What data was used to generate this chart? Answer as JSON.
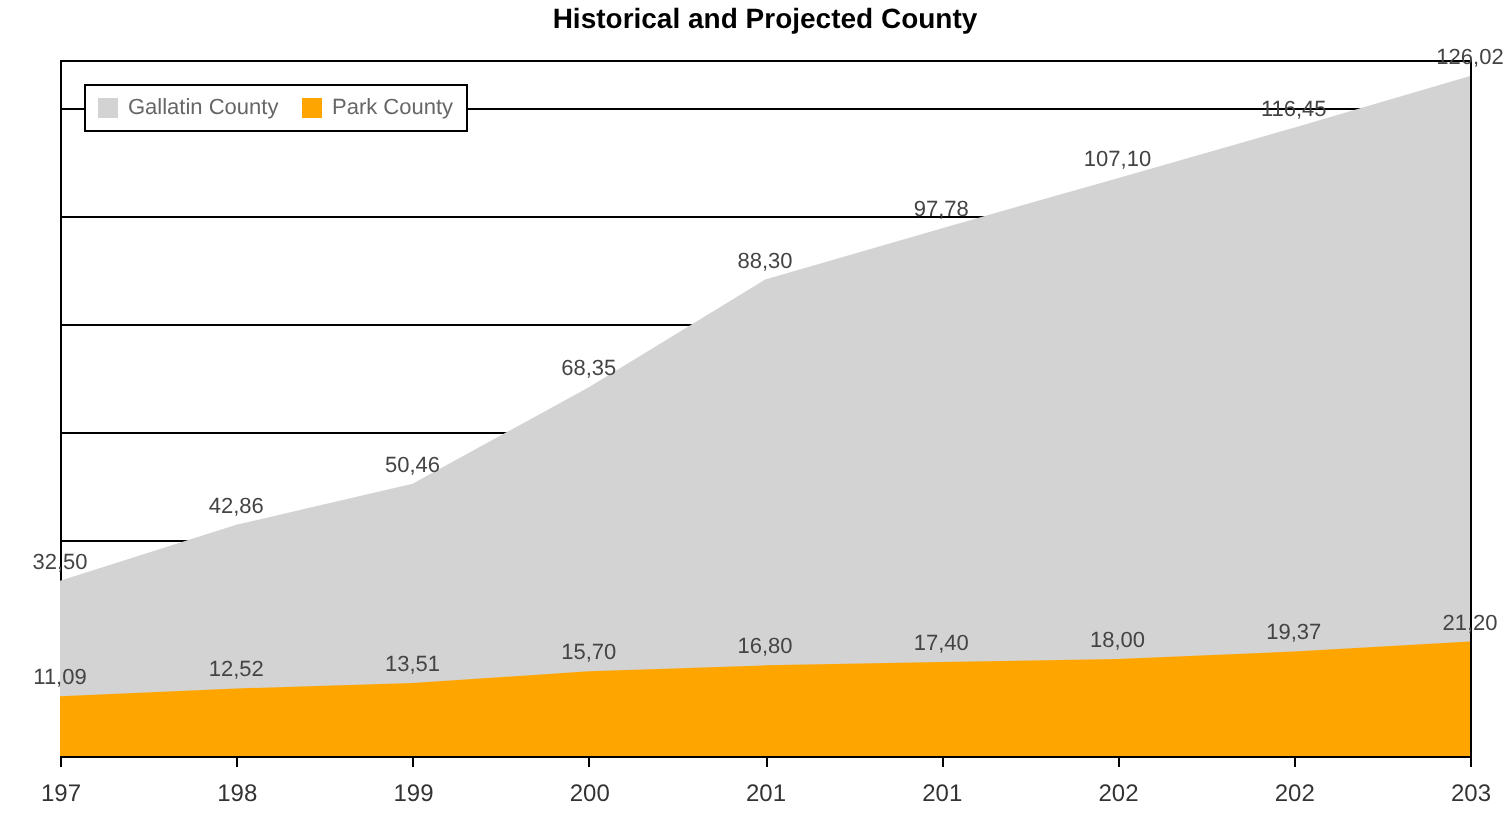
{
  "chart_data": {
    "type": "area",
    "title": "Historical and Projected County",
    "categories": [
      "197",
      "198",
      "199",
      "200",
      "201",
      "201",
      "202",
      "202",
      "203"
    ],
    "series": [
      {
        "name": "Gallatin County",
        "color": "#d3d3d3",
        "values": [
          32.5,
          42.86,
          50.46,
          68.35,
          88.3,
          97.78,
          107.1,
          116.45,
          126.02
        ],
        "value_labels": [
          "32,50",
          "42,86",
          "50,46",
          "68,35",
          "88,30",
          "97,78",
          "107,10",
          "116,45",
          "126,02"
        ]
      },
      {
        "name": "Park County",
        "color": "#ffa500",
        "values": [
          11.09,
          12.52,
          13.51,
          15.7,
          16.8,
          17.4,
          18.0,
          19.37,
          21.2
        ],
        "value_labels": [
          "11,09",
          "12,52",
          "13,51",
          "15,70",
          "16,80",
          "17,40",
          "18,00",
          "19,37",
          "21,20"
        ]
      }
    ],
    "ylim": [
      0,
      129
    ],
    "yticks": [
      {
        "value": 0,
        "label": null
      },
      {
        "value": 40,
        "label": null
      },
      {
        "value": 60,
        "label": null
      },
      {
        "value": 80,
        "label": null
      },
      {
        "value": 100,
        "label": null
      },
      {
        "value": 120,
        "label": null
      }
    ],
    "tick_labels": "x",
    "grid": "y",
    "legend": "top left"
  }
}
